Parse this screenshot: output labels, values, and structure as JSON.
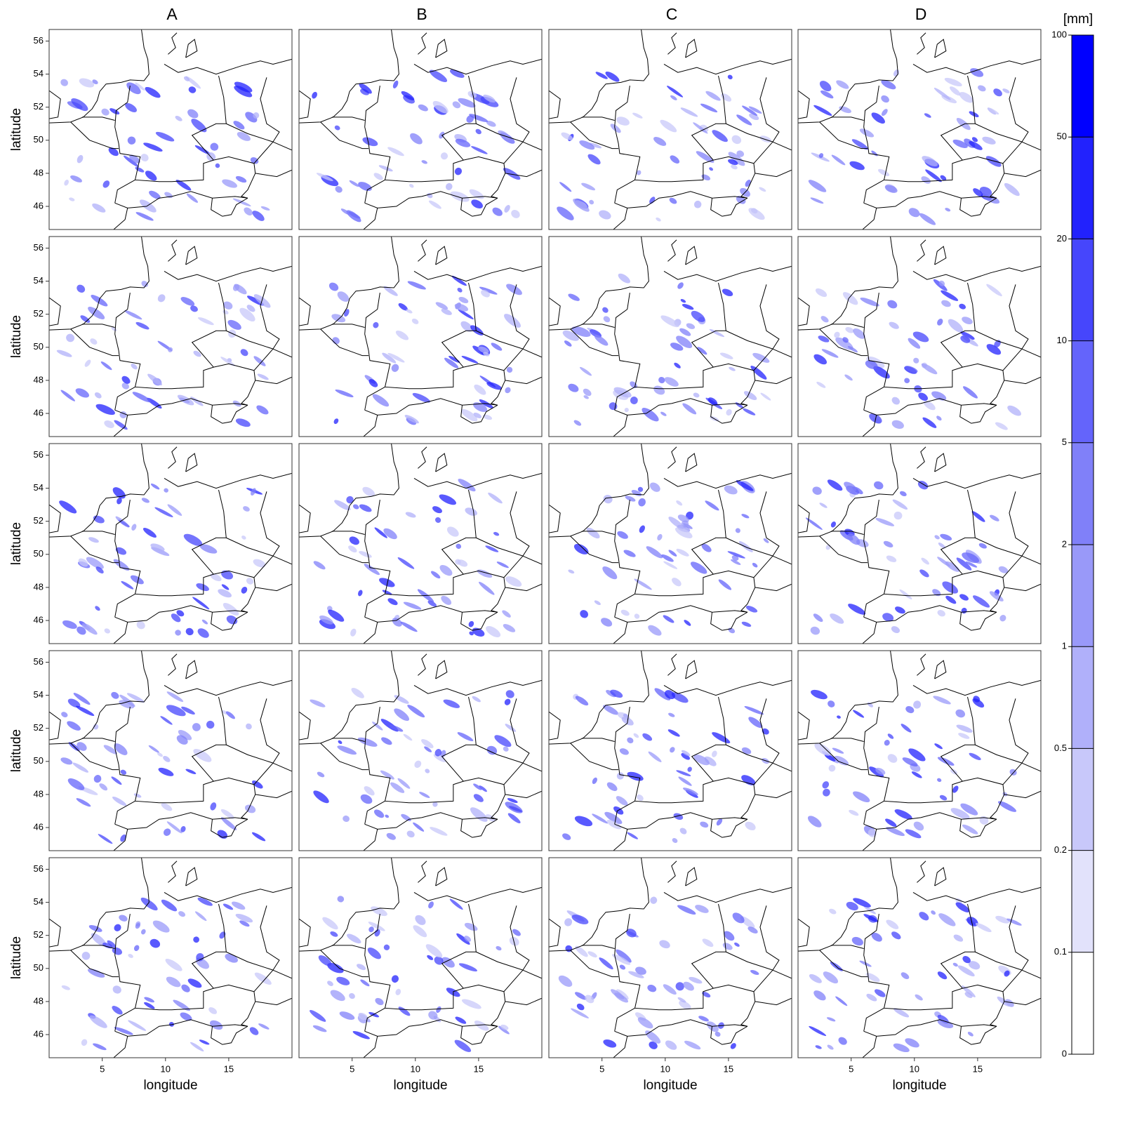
{
  "chart_data": {
    "type": "map",
    "columns": [
      "A",
      "B",
      "C",
      "D"
    ],
    "grid_rows": 5,
    "xlabel": "longitude",
    "ylabel": "latitude",
    "xlim": [
      0.8,
      20.0
    ],
    "ylim": [
      44.6,
      56.7
    ],
    "xticks": [
      5,
      10,
      15
    ],
    "yticks": [
      46,
      48,
      50,
      52,
      54,
      56
    ],
    "colorbar": {
      "unit": "[mm]",
      "levels": [
        0,
        0.1,
        0.2,
        0.5,
        1,
        2,
        5,
        10,
        20,
        50,
        100
      ],
      "colors": [
        "#ffffff",
        "#e2e2fb",
        "#c8c8fa",
        "#b0b0fa",
        "#9999f9",
        "#8080f9",
        "#6464fb",
        "#4646fc",
        "#2222fd",
        "#0000ff"
      ]
    }
  }
}
